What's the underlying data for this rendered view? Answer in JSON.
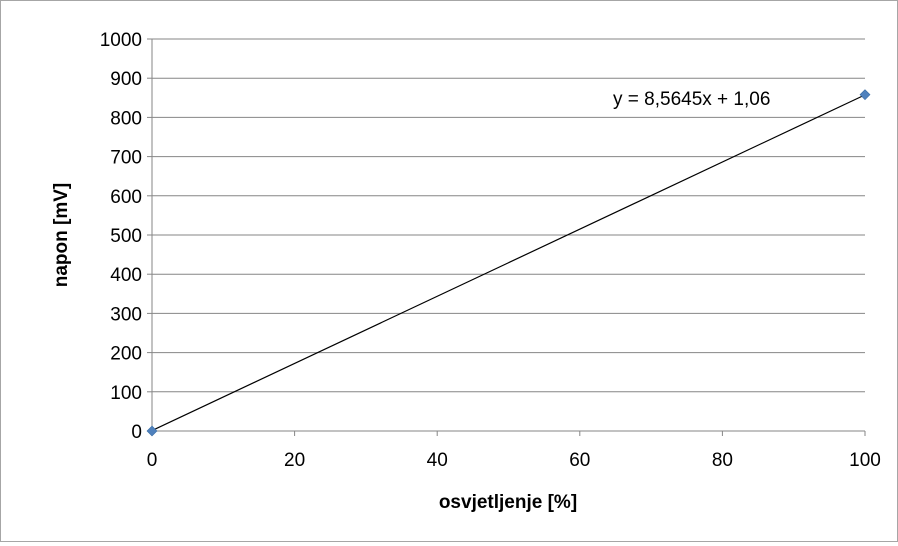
{
  "chart_data": {
    "type": "scatter",
    "title": "",
    "xlabel": "osvjetljenje [%]",
    "ylabel": "napon [mV]",
    "xlim": [
      0,
      100
    ],
    "ylim": [
      0,
      1000
    ],
    "xticks": [
      "0",
      "20",
      "40",
      "60",
      "80",
      "100"
    ],
    "yticks": [
      "0",
      "100",
      "200",
      "300",
      "400",
      "500",
      "600",
      "700",
      "800",
      "900",
      "1000"
    ],
    "grid": "horizontal",
    "legend": "none",
    "series": [
      {
        "points": [
          {
            "x": 0,
            "y": 0
          },
          {
            "x": 100,
            "y": 858
          }
        ],
        "marker": "diamond",
        "color": "#4f81bd"
      }
    ],
    "trendline": {
      "type": "linear",
      "slope": 8.5645,
      "intercept": 1.06,
      "color": "#000000",
      "equation_label": "y = 8,5645x + 1,06"
    },
    "gridline_color": "#868686"
  }
}
